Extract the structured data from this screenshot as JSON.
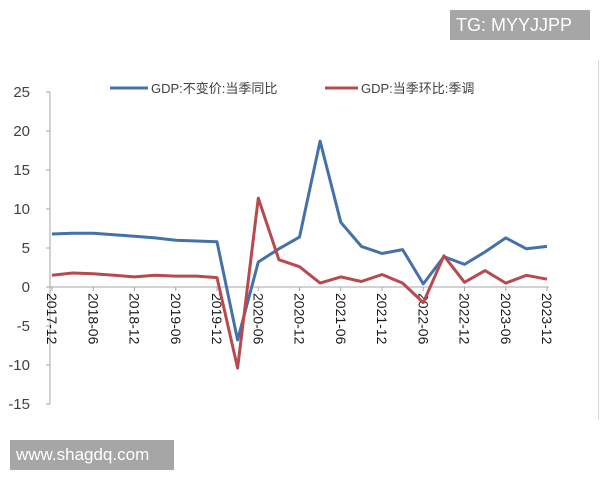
{
  "watermarks": {
    "top": "TG: MYYJJPP",
    "bottom": "www.shagdq.com"
  },
  "legend": {
    "series_1": "GDP:不变价:当季同比",
    "series_2": "GDP:当季环比:季调"
  },
  "colors": {
    "series_1": "#4472a8",
    "series_2": "#b84a4e",
    "axis": "#a6a6a6",
    "watermark_bg": "#a6a6a6"
  },
  "chart_data": {
    "type": "line",
    "title": "",
    "xlabel": "",
    "ylabel": "",
    "ylim": [
      -15,
      25
    ],
    "yticks": [
      25,
      20,
      15,
      10,
      5,
      0,
      -5,
      -10,
      -15
    ],
    "grid": false,
    "legend_position": "top",
    "x": [
      "2017-12",
      "2018-03",
      "2018-06",
      "2018-09",
      "2018-12",
      "2019-03",
      "2019-06",
      "2019-09",
      "2019-12",
      "2020-03",
      "2020-06",
      "2020-09",
      "2020-12",
      "2021-03",
      "2021-06",
      "2021-09",
      "2021-12",
      "2022-03",
      "2022-06",
      "2022-09",
      "2022-12",
      "2023-03",
      "2023-06",
      "2023-09",
      "2023-12"
    ],
    "xtick_labels": [
      "2017-12",
      "2018-06",
      "2018-12",
      "2019-06",
      "2019-12",
      "2020-06",
      "2020-12",
      "2021-06",
      "2021-12",
      "2022-06",
      "2022-12",
      "2023-06",
      "2023-12"
    ],
    "series": [
      {
        "name": "GDP:不变价:当季同比",
        "color": "#4472a8",
        "values": [
          6.8,
          6.9,
          6.9,
          6.7,
          6.5,
          6.3,
          6.0,
          5.9,
          5.8,
          -6.8,
          3.2,
          4.9,
          6.4,
          18.7,
          8.3,
          5.2,
          4.3,
          4.8,
          0.4,
          3.9,
          2.9,
          4.5,
          6.3,
          4.9,
          5.2
        ]
      },
      {
        "name": "GDP:当季环比:季调",
        "color": "#b84a4e",
        "values": [
          1.5,
          1.8,
          1.7,
          1.5,
          1.3,
          1.5,
          1.4,
          1.4,
          1.2,
          -10.4,
          11.4,
          3.5,
          2.6,
          0.5,
          1.3,
          0.7,
          1.6,
          0.5,
          -2.0,
          4.0,
          0.6,
          2.1,
          0.5,
          1.5,
          1.0
        ]
      }
    ]
  }
}
